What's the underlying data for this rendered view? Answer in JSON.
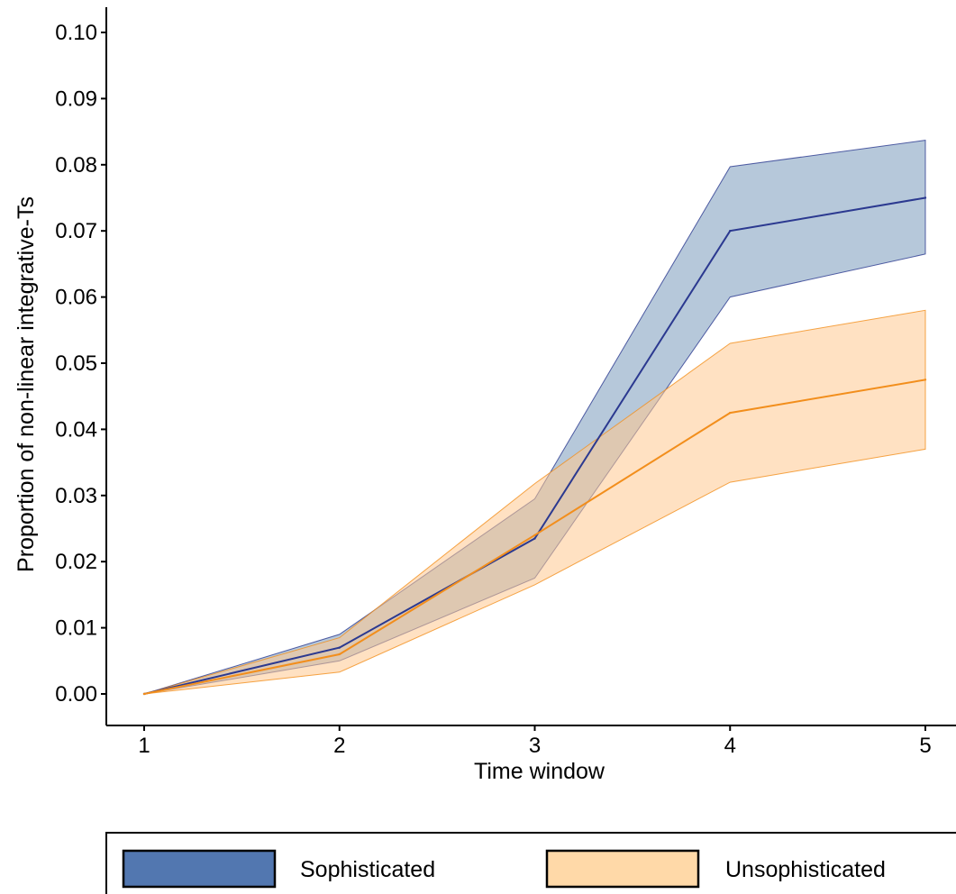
{
  "chart_data": {
    "type": "line",
    "xlabel": "Time window",
    "ylabel": "Proportion of non-linear integrative-Ts",
    "x": [
      1,
      2,
      3,
      4,
      5
    ],
    "x_ticks": [
      "1",
      "2",
      "3",
      "4",
      "5"
    ],
    "xlim": [
      0.97,
      5.15
    ],
    "ylim": [
      -0.0047,
      0.1045
    ],
    "y_ticks": [
      "0.00",
      "0.01",
      "0.02",
      "0.03",
      "0.04",
      "0.05",
      "0.06",
      "0.07",
      "0.08",
      "0.09",
      "0.10"
    ],
    "grid": false,
    "legend_position": "bottom",
    "series": [
      {
        "name": "Sophisticated",
        "values": [
          0.0,
          0.007,
          0.0235,
          0.07,
          0.075
        ],
        "lower": [
          0.0,
          0.005,
          0.0175,
          0.06,
          0.0665
        ],
        "upper": [
          0.0,
          0.009,
          0.0295,
          0.0797,
          0.0837
        ],
        "line_color": "#2b3990",
        "fill_color": "#6e92b5",
        "legend_swatch_color": "#5277b0"
      },
      {
        "name": "Unsophisticated",
        "values": [
          0.0,
          0.006,
          0.024,
          0.0425,
          0.0475
        ],
        "lower": [
          0.0,
          0.0033,
          0.0165,
          0.032,
          0.037
        ],
        "upper": [
          0.0,
          0.0085,
          0.0318,
          0.053,
          0.058
        ],
        "line_color": "#f28e1c",
        "fill_color": "#ffc98f",
        "legend_swatch_color": "#ffd9a8"
      }
    ]
  }
}
